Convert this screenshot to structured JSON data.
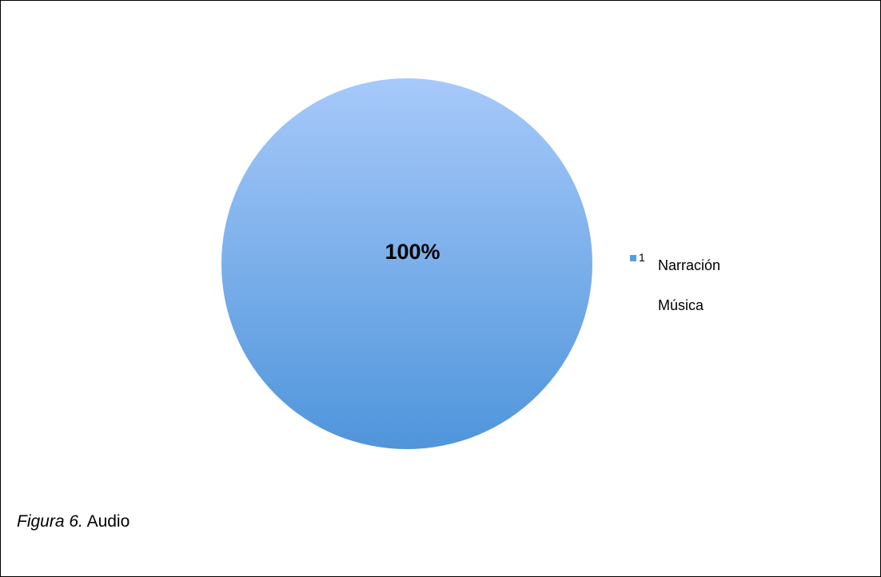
{
  "chart_data": {
    "type": "pie",
    "slices": [
      {
        "label": "1",
        "value": 100,
        "color": "#5b9bdf"
      }
    ],
    "data_labels": [
      "100%"
    ],
    "legend": {
      "placement": "right",
      "entries": [
        {
          "marker_label": "1",
          "text": "Narración",
          "color": "#5b9bdf"
        },
        {
          "marker_label": "",
          "text": "Música",
          "color": ""
        }
      ]
    }
  },
  "caption": {
    "lead": "Figura 6.",
    "text": "Audio"
  }
}
